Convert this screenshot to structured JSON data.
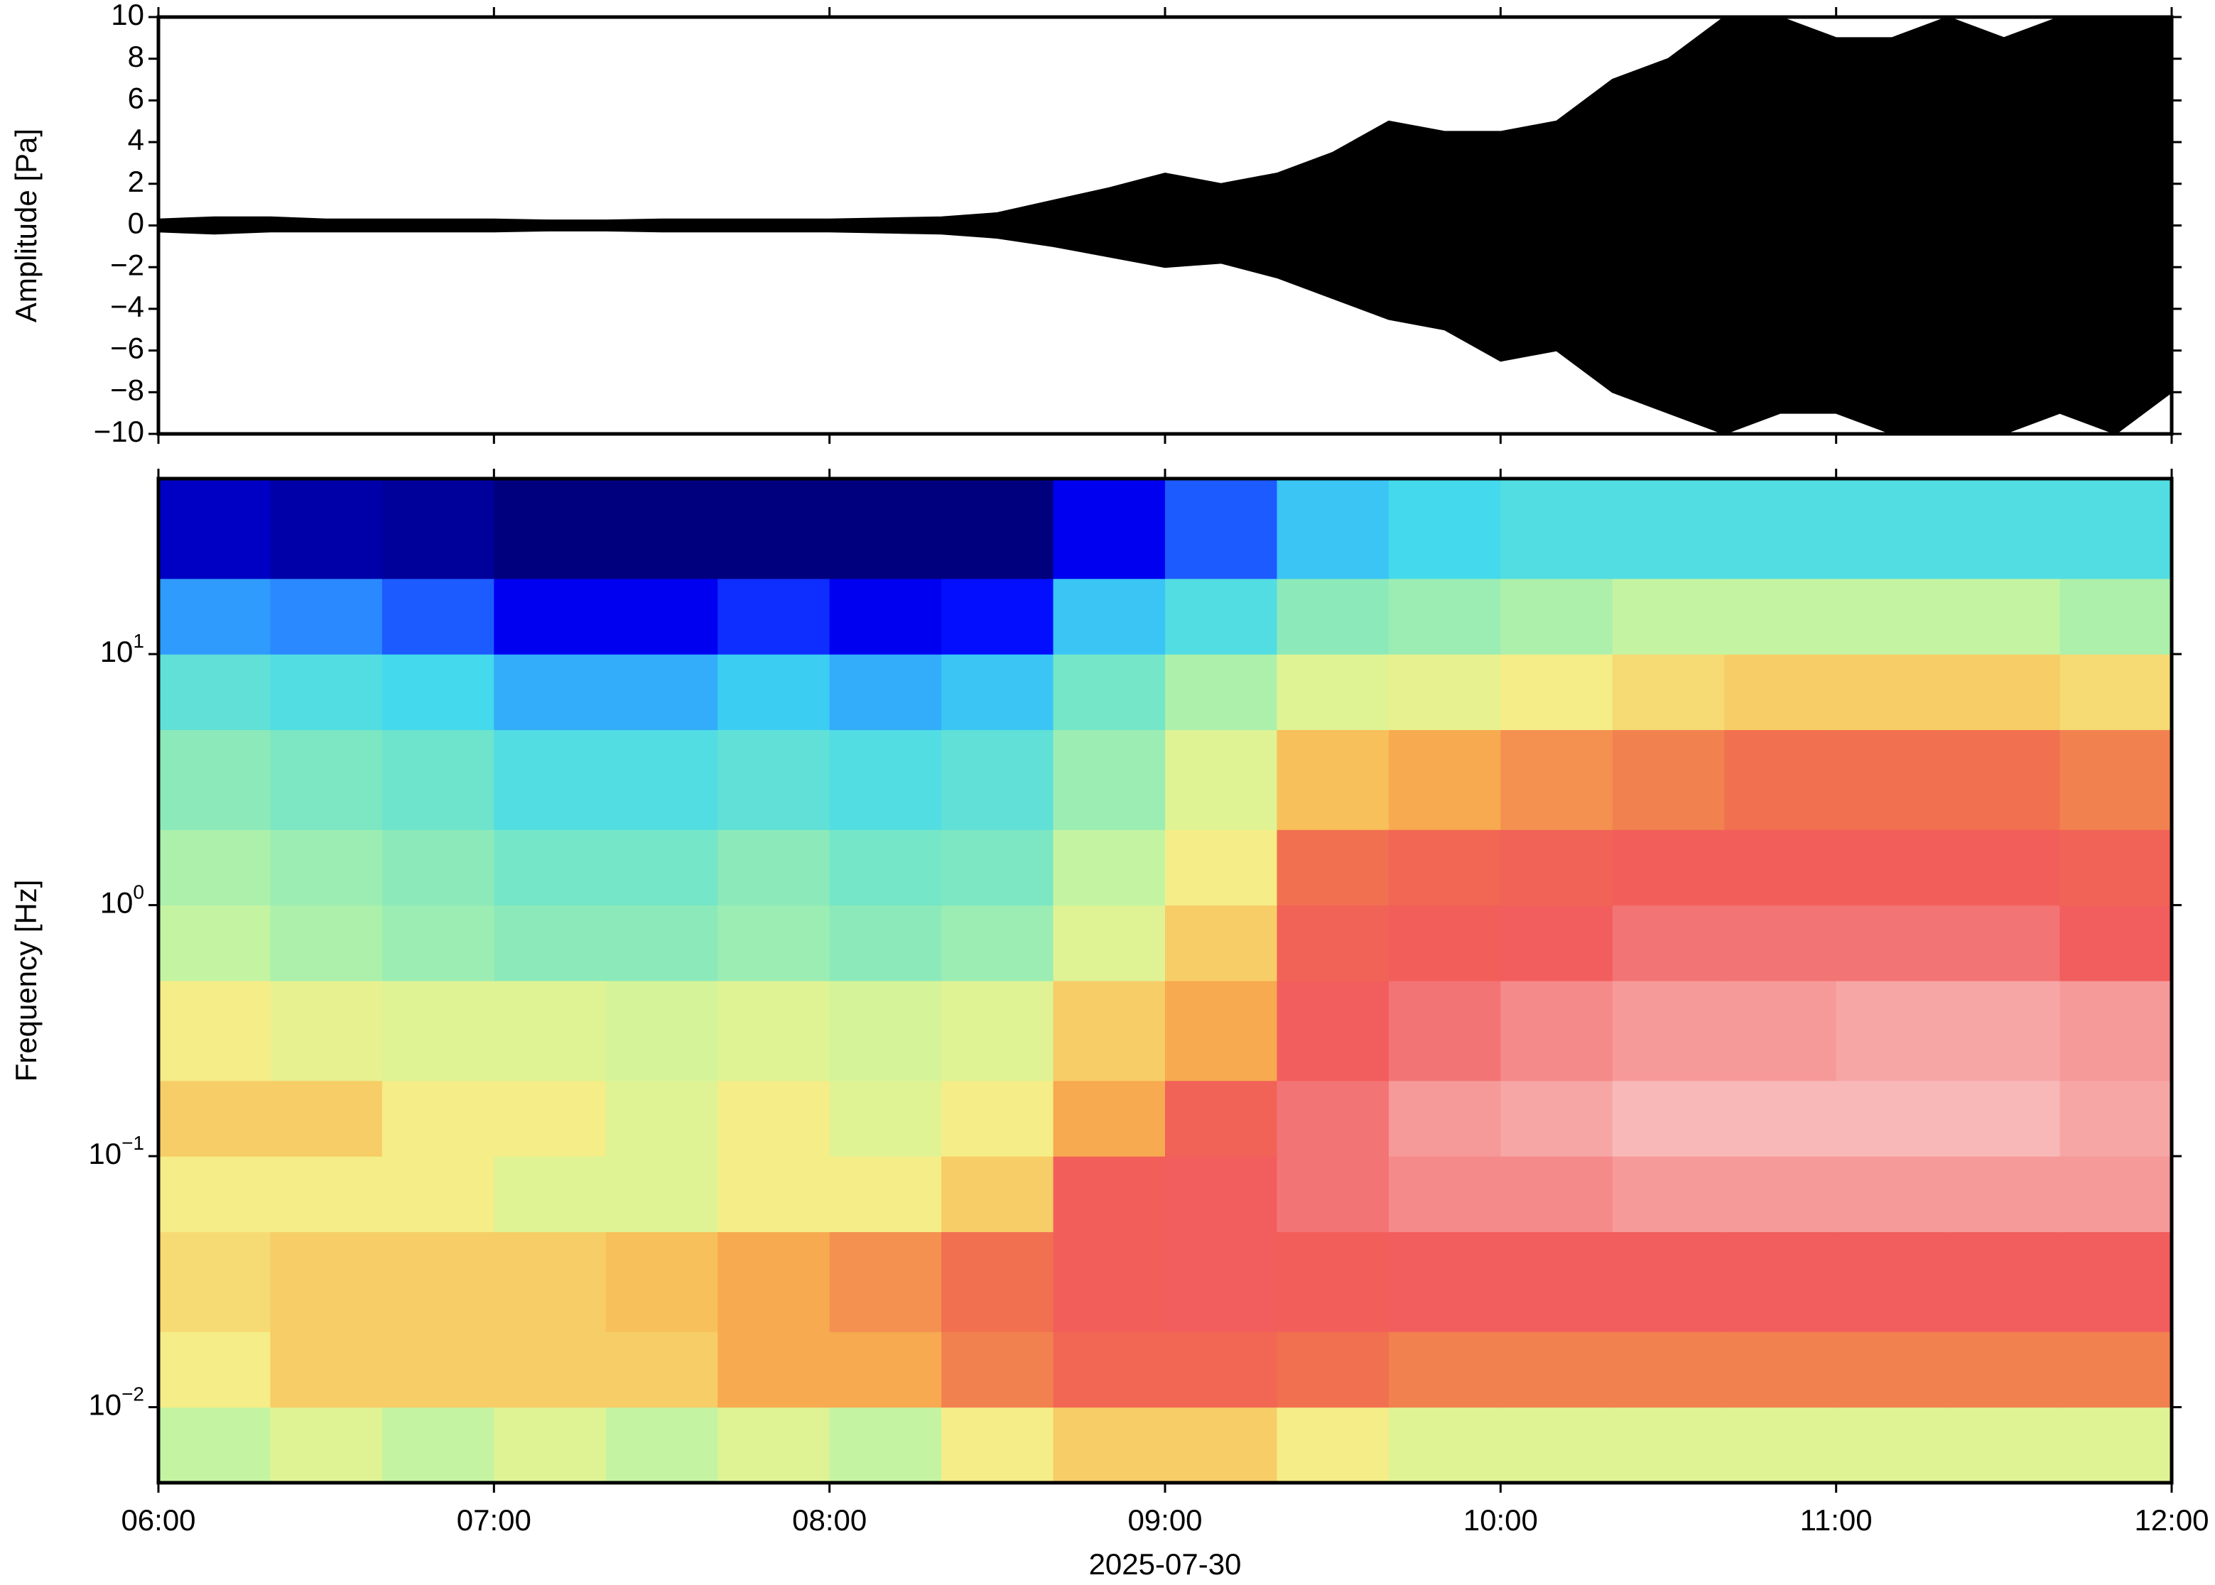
{
  "chart_data": [
    {
      "type": "envelope",
      "ylabel": "Amplitude [Pa]",
      "color": "#000000",
      "x": [
        "2025-07-30T06:00",
        "2025-07-30T06:10",
        "2025-07-30T06:20",
        "2025-07-30T06:30",
        "2025-07-30T06:40",
        "2025-07-30T06:50",
        "2025-07-30T07:00",
        "2025-07-30T07:10",
        "2025-07-30T07:20",
        "2025-07-30T07:30",
        "2025-07-30T07:40",
        "2025-07-30T07:50",
        "2025-07-30T08:00",
        "2025-07-30T08:10",
        "2025-07-30T08:20",
        "2025-07-30T08:30",
        "2025-07-30T08:40",
        "2025-07-30T08:50",
        "2025-07-30T09:00",
        "2025-07-30T09:10",
        "2025-07-30T09:20",
        "2025-07-30T09:30",
        "2025-07-30T09:40",
        "2025-07-30T09:50",
        "2025-07-30T10:00",
        "2025-07-30T10:10",
        "2025-07-30T10:20",
        "2025-07-30T10:30",
        "2025-07-30T10:40",
        "2025-07-30T10:50",
        "2025-07-30T11:00",
        "2025-07-30T11:10",
        "2025-07-30T11:20",
        "2025-07-30T11:30",
        "2025-07-30T11:40",
        "2025-07-30T11:50",
        "2025-07-30T12:00"
      ],
      "envelope_max": [
        0.3,
        0.4,
        0.4,
        0.3,
        0.3,
        0.3,
        0.3,
        0.25,
        0.25,
        0.3,
        0.3,
        0.3,
        0.3,
        0.35,
        0.4,
        0.6,
        1.2,
        1.8,
        2.5,
        2.0,
        2.5,
        3.5,
        5.0,
        4.5,
        4.5,
        5.0,
        7.0,
        8.0,
        10,
        10,
        9,
        9,
        10,
        9,
        10,
        10,
        10
      ],
      "envelope_min": [
        -0.3,
        -0.4,
        -0.3,
        -0.3,
        -0.3,
        -0.3,
        -0.3,
        -0.25,
        -0.25,
        -0.3,
        -0.3,
        -0.3,
        -0.3,
        -0.35,
        -0.4,
        -0.6,
        -1.0,
        -1.5,
        -2.0,
        -1.8,
        -2.5,
        -3.5,
        -4.5,
        -5.0,
        -6.5,
        -6.0,
        -8.0,
        -9.0,
        -10,
        -9,
        -9,
        -10,
        -10,
        -10,
        -9,
        -10,
        -8
      ],
      "xlim": [
        "2025-07-30T06:00",
        "2025-07-30T12:00"
      ],
      "xticks": [
        "2025-07-30T06:00",
        "2025-07-30T07:00",
        "2025-07-30T08:00",
        "2025-07-30T09:00",
        "2025-07-30T10:00",
        "2025-07-30T11:00",
        "2025-07-30T12:00"
      ],
      "ylim": [
        -10,
        10
      ],
      "yticks": [
        {
          "value": -10,
          "label": "−10"
        },
        {
          "value": -8,
          "label": "−8"
        },
        {
          "value": -6,
          "label": "−6"
        },
        {
          "value": -4,
          "label": "−4"
        },
        {
          "value": -2,
          "label": "−2"
        },
        0,
        2,
        4,
        6,
        8,
        10
      ]
    },
    {
      "type": "spectrogram",
      "ylabel": "Frequency [Hz]",
      "xlabel": "2025-07-30",
      "log_y": true,
      "x_bins": [
        "2025-07-30T06:00",
        "2025-07-30T06:20",
        "2025-07-30T06:40",
        "2025-07-30T07:00",
        "2025-07-30T07:20",
        "2025-07-30T07:40",
        "2025-07-30T08:00",
        "2025-07-30T08:20",
        "2025-07-30T08:40",
        "2025-07-30T09:00",
        "2025-07-30T09:20",
        "2025-07-30T09:40",
        "2025-07-30T10:00",
        "2025-07-30T10:20",
        "2025-07-30T10:40",
        "2025-07-30T11:00",
        "2025-07-30T11:20",
        "2025-07-30T11:40",
        "2025-07-30T12:00"
      ],
      "freq_bins": [
        0.005,
        0.01,
        0.02,
        0.05,
        0.1,
        0.2,
        0.5,
        1,
        2,
        5,
        10,
        20,
        50
      ],
      "z": [
        [
          0.45,
          0.5,
          0.45,
          0.5,
          0.45,
          0.5,
          0.45,
          0.55,
          0.6,
          0.6,
          0.55,
          0.5,
          0.5,
          0.5,
          0.5,
          0.5,
          0.5,
          0.5
        ],
        [
          0.55,
          0.6,
          0.6,
          0.6,
          0.6,
          0.65,
          0.65,
          0.7,
          0.75,
          0.75,
          0.72,
          0.7,
          0.7,
          0.7,
          0.7,
          0.7,
          0.7,
          0.7
        ],
        [
          0.58,
          0.6,
          0.6,
          0.6,
          0.62,
          0.65,
          0.68,
          0.72,
          0.8,
          0.82,
          0.8,
          0.82,
          0.82,
          0.82,
          0.82,
          0.82,
          0.82,
          0.82
        ],
        [
          0.55,
          0.55,
          0.55,
          0.5,
          0.5,
          0.55,
          0.55,
          0.6,
          0.8,
          0.82,
          0.85,
          0.88,
          0.88,
          0.9,
          0.9,
          0.9,
          0.9,
          0.9
        ],
        [
          0.6,
          0.6,
          0.55,
          0.55,
          0.5,
          0.55,
          0.5,
          0.55,
          0.65,
          0.78,
          0.85,
          0.9,
          0.92,
          0.95,
          0.95,
          0.95,
          0.95,
          0.92
        ],
        [
          0.55,
          0.52,
          0.5,
          0.5,
          0.48,
          0.5,
          0.48,
          0.5,
          0.6,
          0.65,
          0.82,
          0.85,
          0.88,
          0.9,
          0.9,
          0.92,
          0.92,
          0.9
        ],
        [
          0.45,
          0.42,
          0.4,
          0.38,
          0.38,
          0.4,
          0.38,
          0.4,
          0.5,
          0.6,
          0.78,
          0.8,
          0.82,
          0.85,
          0.85,
          0.85,
          0.85,
          0.82
        ],
        [
          0.42,
          0.4,
          0.38,
          0.35,
          0.35,
          0.38,
          0.35,
          0.36,
          0.45,
          0.55,
          0.72,
          0.75,
          0.78,
          0.8,
          0.8,
          0.8,
          0.8,
          0.78
        ],
        [
          0.38,
          0.36,
          0.34,
          0.3,
          0.3,
          0.32,
          0.3,
          0.32,
          0.4,
          0.5,
          0.62,
          0.65,
          0.68,
          0.7,
          0.72,
          0.72,
          0.72,
          0.7
        ],
        [
          0.32,
          0.3,
          0.28,
          0.22,
          0.22,
          0.26,
          0.22,
          0.25,
          0.35,
          0.42,
          0.5,
          0.52,
          0.55,
          0.58,
          0.6,
          0.6,
          0.6,
          0.58
        ],
        [
          0.2,
          0.18,
          0.15,
          0.08,
          0.08,
          0.12,
          0.08,
          0.1,
          0.25,
          0.3,
          0.38,
          0.4,
          0.42,
          0.45,
          0.45,
          0.45,
          0.45,
          0.42
        ],
        [
          0.05,
          0.03,
          0.02,
          0.0,
          0.0,
          0.0,
          0.0,
          0.0,
          0.08,
          0.15,
          0.25,
          0.28,
          0.3,
          0.3,
          0.3,
          0.3,
          0.3,
          0.3
        ]
      ],
      "zlim": [
        0,
        1
      ],
      "colormap": [
        "#00007f",
        "#0000ff",
        "#2b8cff",
        "#3fd8f0",
        "#7fe8c0",
        "#c8f5a0",
        "#f5f08a",
        "#f8b550",
        "#f06a50",
        "#f25c5c",
        "#f6a0a0",
        "#fbd6d6"
      ],
      "xlim": [
        "2025-07-30T06:00",
        "2025-07-30T12:00"
      ],
      "xticks": [
        {
          "value": "2025-07-30T06:00",
          "label": "06:00"
        },
        {
          "value": "2025-07-30T07:00",
          "label": "07:00"
        },
        {
          "value": "2025-07-30T08:00",
          "label": "08:00"
        },
        {
          "value": "2025-07-30T09:00",
          "label": "09:00"
        },
        {
          "value": "2025-07-30T10:00",
          "label": "10:00"
        },
        {
          "value": "2025-07-30T11:00",
          "label": "11:00"
        },
        {
          "value": "2025-07-30T12:00",
          "label": "12:00"
        }
      ],
      "ylim": [
        0.005,
        50
      ],
      "yticks": [
        {
          "value": 0.01,
          "label": "10",
          "exponent": "−2"
        },
        {
          "value": 0.1,
          "label": "10",
          "exponent": "−1"
        },
        {
          "value": 1,
          "label": "10",
          "exponent": "0"
        },
        {
          "value": 10,
          "label": "10",
          "exponent": "1"
        }
      ]
    }
  ]
}
